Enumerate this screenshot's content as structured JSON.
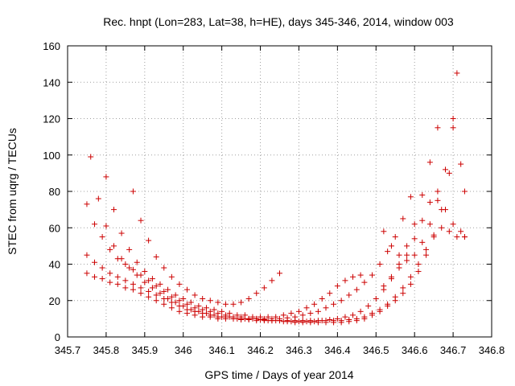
{
  "chart_data": {
    "type": "scatter",
    "title": "Rec. hnpt (Lon=283, Lat=38, h=HE), days 345-346, 2014, window 003",
    "xlabel": "GPS time / Days of year 2014",
    "ylabel": "STEC from uqrg / TECUs",
    "xlim": [
      345.7,
      346.8
    ],
    "ylim": [
      0,
      160
    ],
    "xticks": [
      "345.7",
      "345.8",
      "345.9",
      "346",
      "346.1",
      "346.2",
      "346.3",
      "346.4",
      "346.5",
      "346.6",
      "346.7",
      "346.8"
    ],
    "yticks": [
      "0",
      "20",
      "40",
      "60",
      "80",
      "100",
      "120",
      "140",
      "160"
    ],
    "grid": true,
    "marker": "+",
    "color": "#cc0000",
    "series": [
      {
        "arcs": [
          [
            [
              345.75,
              73
            ],
            [
              345.77,
              62
            ],
            [
              345.79,
              55
            ],
            [
              345.81,
              48
            ],
            [
              345.83,
              43
            ],
            [
              345.85,
              40
            ],
            [
              345.87,
              37
            ],
            [
              345.89,
              34
            ],
            [
              345.91,
              31
            ],
            [
              345.93,
              28
            ],
            [
              345.95,
              25
            ],
            [
              345.97,
              22
            ],
            [
              345.99,
              20
            ],
            [
              346.01,
              18
            ],
            [
              346.03,
              16
            ],
            [
              346.05,
              15
            ],
            [
              346.07,
              14
            ],
            [
              346.09,
              13
            ],
            [
              346.11,
              12
            ],
            [
              346.13,
              11
            ],
            [
              346.15,
              11
            ],
            [
              346.17,
              10
            ],
            [
              346.19,
              10
            ],
            [
              346.21,
              9.5
            ],
            [
              346.23,
              9
            ],
            [
              346.25,
              9
            ],
            [
              346.27,
              8.5
            ],
            [
              346.29,
              8
            ],
            [
              346.31,
              8
            ],
            [
              346.33,
              8
            ],
            [
              346.35,
              8
            ],
            [
              346.37,
              8
            ],
            [
              346.39,
              8
            ],
            [
              346.41,
              8
            ],
            [
              346.43,
              8.5
            ],
            [
              346.45,
              9
            ],
            [
              346.47,
              10
            ],
            [
              346.49,
              12
            ],
            [
              346.51,
              14
            ],
            [
              346.53,
              17
            ],
            [
              346.55,
              20
            ],
            [
              346.57,
              24
            ],
            [
              346.59,
              29
            ],
            [
              346.61,
              36
            ],
            [
              346.63,
              45
            ],
            [
              346.65,
              56
            ],
            [
              346.67,
              70
            ],
            [
              346.69,
              90
            ],
            [
              346.7,
              120
            ],
            [
              346.71,
              145
            ]
          ],
          [
            [
              345.76,
              99
            ],
            [
              345.78,
              76
            ],
            [
              345.8,
              61
            ],
            [
              345.82,
              50
            ],
            [
              345.84,
              43
            ],
            [
              345.86,
              38
            ],
            [
              345.88,
              34
            ],
            [
              345.9,
              30
            ],
            [
              345.92,
              27
            ],
            [
              345.94,
              24
            ],
            [
              345.96,
              21
            ],
            [
              345.98,
              19
            ],
            [
              346.0,
              17
            ],
            [
              346.02,
              15
            ],
            [
              346.04,
              14
            ],
            [
              346.06,
              13
            ],
            [
              346.08,
              12
            ],
            [
              346.1,
              11
            ],
            [
              346.12,
              11
            ],
            [
              346.14,
              10
            ],
            [
              346.16,
              10
            ],
            [
              346.18,
              10
            ],
            [
              346.2,
              9.5
            ],
            [
              346.22,
              9
            ],
            [
              346.24,
              9
            ],
            [
              346.26,
              8.5
            ],
            [
              346.28,
              8.5
            ],
            [
              346.3,
              8.5
            ],
            [
              346.32,
              8.5
            ],
            [
              346.34,
              8.5
            ],
            [
              346.36,
              9
            ],
            [
              346.38,
              9.5
            ],
            [
              346.4,
              10
            ],
            [
              346.42,
              11
            ],
            [
              346.44,
              12
            ],
            [
              346.46,
              14
            ],
            [
              346.48,
              17
            ],
            [
              346.5,
              21
            ],
            [
              346.52,
              26
            ],
            [
              346.54,
              32
            ],
            [
              346.56,
              40
            ],
            [
              346.58,
              50
            ],
            [
              346.6,
              62
            ],
            [
              346.62,
              78
            ],
            [
              346.64,
              96
            ],
            [
              346.66,
              115
            ]
          ],
          [
            [
              345.75,
              45
            ],
            [
              345.77,
              41
            ],
            [
              345.79,
              38
            ],
            [
              345.81,
              35
            ],
            [
              345.83,
              33
            ],
            [
              345.85,
              31
            ],
            [
              345.87,
              29
            ],
            [
              345.89,
              27
            ],
            [
              345.91,
              25
            ],
            [
              345.93,
              23
            ],
            [
              345.95,
              21
            ],
            [
              345.97,
              19
            ],
            [
              345.99,
              17
            ],
            [
              346.01,
              15
            ],
            [
              346.03,
              14
            ],
            [
              346.05,
              13
            ],
            [
              346.07,
              12
            ],
            [
              346.09,
              11
            ],
            [
              346.11,
              11
            ],
            [
              346.13,
              10
            ],
            [
              346.15,
              10
            ],
            [
              346.17,
              10
            ],
            [
              346.19,
              10
            ],
            [
              346.21,
              10
            ],
            [
              346.23,
              10
            ],
            [
              346.25,
              10
            ],
            [
              346.27,
              10.5
            ],
            [
              346.29,
              11
            ],
            [
              346.31,
              12
            ],
            [
              346.33,
              13
            ],
            [
              346.35,
              14
            ],
            [
              346.37,
              16
            ],
            [
              346.39,
              18
            ],
            [
              346.41,
              20
            ],
            [
              346.43,
              23
            ],
            [
              346.45,
              26
            ],
            [
              346.47,
              30
            ],
            [
              346.49,
              34
            ],
            [
              346.51,
              40
            ],
            [
              346.53,
              47
            ],
            [
              346.55,
              55
            ],
            [
              346.57,
              65
            ],
            [
              346.59,
              77
            ]
          ],
          [
            [
              345.75,
              35
            ],
            [
              345.77,
              33
            ],
            [
              345.79,
              32
            ],
            [
              345.81,
              30
            ],
            [
              345.83,
              29
            ],
            [
              345.85,
              27
            ],
            [
              345.87,
              26
            ],
            [
              345.89,
              24
            ],
            [
              345.91,
              22
            ],
            [
              345.93,
              20
            ],
            [
              345.95,
              18
            ],
            [
              345.97,
              16
            ],
            [
              345.99,
              14
            ],
            [
              346.01,
              13
            ],
            [
              346.03,
              12
            ],
            [
              346.05,
              11
            ],
            [
              346.07,
              11
            ],
            [
              346.09,
              10
            ],
            [
              346.11,
              10
            ],
            [
              346.13,
              10
            ],
            [
              346.15,
              9.5
            ],
            [
              346.17,
              9.5
            ],
            [
              346.19,
              9
            ],
            [
              346.21,
              9
            ],
            [
              346.23,
              9
            ],
            [
              346.25,
              9
            ],
            [
              346.27,
              9
            ],
            [
              346.29,
              9
            ],
            [
              346.31,
              9
            ],
            [
              346.33,
              9
            ],
            [
              346.35,
              9
            ],
            [
              346.37,
              9
            ],
            [
              346.39,
              9
            ],
            [
              346.41,
              9
            ],
            [
              346.43,
              9.5
            ],
            [
              346.45,
              10
            ],
            [
              346.47,
              11
            ],
            [
              346.49,
              13
            ],
            [
              346.51,
              15
            ],
            [
              346.53,
              18
            ],
            [
              346.55,
              22
            ],
            [
              346.57,
              27
            ],
            [
              346.59,
              33
            ],
            [
              346.61,
              40
            ],
            [
              346.63,
              48
            ],
            [
              346.65,
              55
            ],
            [
              346.67,
              60
            ],
            [
              346.69,
              58
            ],
            [
              346.71,
              55
            ],
            [
              346.73,
              55
            ]
          ],
          [
            [
              345.8,
              88
            ],
            [
              345.82,
              70
            ],
            [
              345.84,
              57
            ],
            [
              345.86,
              48
            ],
            [
              345.88,
              41
            ],
            [
              345.9,
              36
            ],
            [
              345.92,
              32
            ],
            [
              345.94,
              29
            ],
            [
              345.96,
              26
            ],
            [
              345.98,
              23
            ],
            [
              346.0,
              21
            ],
            [
              346.02,
              19
            ],
            [
              346.04,
              17
            ],
            [
              346.06,
              16
            ],
            [
              346.08,
              15
            ],
            [
              346.1,
              14
            ],
            [
              346.12,
              13
            ],
            [
              346.14,
              12
            ],
            [
              346.16,
              12
            ],
            [
              346.18,
              11
            ],
            [
              346.2,
              11
            ],
            [
              346.22,
              11
            ],
            [
              346.24,
              11
            ],
            [
              346.26,
              12
            ],
            [
              346.28,
              13
            ],
            [
              346.3,
              14
            ],
            [
              346.32,
              16
            ],
            [
              346.34,
              18
            ],
            [
              346.36,
              21
            ],
            [
              346.38,
              24
            ],
            [
              346.4,
              28
            ],
            [
              346.42,
              31
            ],
            [
              346.44,
              33
            ],
            [
              346.46,
              34
            ]
          ],
          [
            [
              345.87,
              80
            ],
            [
              345.89,
              64
            ],
            [
              345.91,
              53
            ],
            [
              345.93,
              44
            ],
            [
              345.95,
              38
            ],
            [
              345.97,
              33
            ],
            [
              345.99,
              29
            ],
            [
              346.01,
              26
            ],
            [
              346.03,
              23
            ],
            [
              346.05,
              21
            ],
            [
              346.07,
              20
            ],
            [
              346.09,
              19
            ],
            [
              346.11,
              18
            ],
            [
              346.13,
              18
            ],
            [
              346.15,
              19
            ],
            [
              346.17,
              21
            ],
            [
              346.19,
              24
            ],
            [
              346.21,
              27
            ],
            [
              346.23,
              31
            ],
            [
              346.25,
              35
            ]
          ],
          [
            [
              346.52,
              58
            ],
            [
              346.54,
              50
            ],
            [
              346.56,
              45
            ],
            [
              346.58,
              42
            ],
            [
              346.6,
              45
            ],
            [
              346.62,
              52
            ],
            [
              346.64,
              62
            ],
            [
              346.66,
              75
            ],
            [
              346.68,
              92
            ],
            [
              346.7,
              115
            ],
            [
              346.72,
              95
            ],
            [
              346.73,
              80
            ]
          ],
          [
            [
              346.52,
              28
            ],
            [
              346.54,
              33
            ],
            [
              346.56,
              38
            ],
            [
              346.58,
              45
            ],
            [
              346.6,
              54
            ],
            [
              346.62,
              64
            ],
            [
              346.64,
              74
            ],
            [
              346.66,
              80
            ],
            [
              346.68,
              70
            ],
            [
              346.7,
              62
            ],
            [
              346.72,
              58
            ],
            [
              346.73,
              55
            ]
          ]
        ]
      }
    ]
  }
}
